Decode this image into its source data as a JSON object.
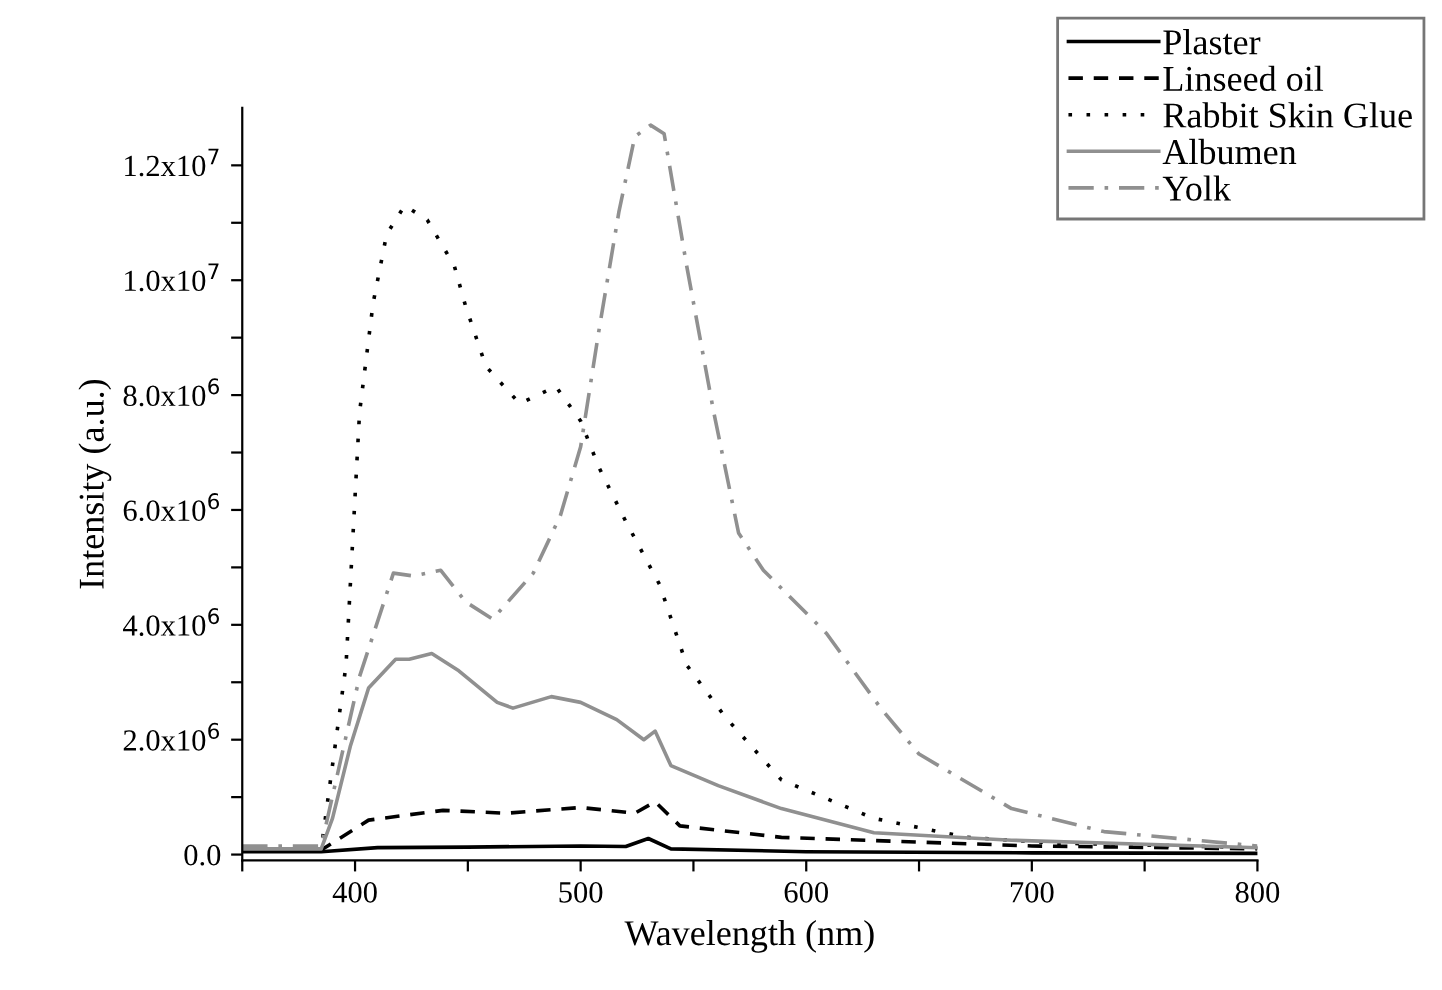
{
  "chart_data": {
    "type": "line",
    "xlabel": "Wavelength (nm)",
    "ylabel": "Intensity (a.u.)",
    "xlim": [
      350,
      800
    ],
    "xticks": [
      {
        "value": 350,
        "label": null
      },
      400,
      {
        "value": 450,
        "label": null
      },
      500,
      {
        "value": 550,
        "label": null
      },
      600,
      {
        "value": 650,
        "label": null
      },
      700,
      {
        "value": 750,
        "label": null
      },
      800
    ],
    "ylim": [
      -100000,
      13000000
    ],
    "yticks": [
      {
        "value": 0,
        "label": "0.0"
      },
      {
        "value": 1000000,
        "label": null
      },
      {
        "value": 2000000,
        "label": "2.0x10$^{6}$"
      },
      {
        "value": 3000000,
        "label": null
      },
      {
        "value": 4000000,
        "label": "4.0x10$^{6}$"
      },
      {
        "value": 5000000,
        "label": null
      },
      {
        "value": 6000000,
        "label": "6.0x10$^{6}$"
      },
      {
        "value": 7000000,
        "label": null
      },
      {
        "value": 8000000,
        "label": "8.0x10$^{6}$"
      },
      {
        "value": 9000000,
        "label": null
      },
      {
        "value": 10000000,
        "label": "1.0x10$^{7}$"
      },
      {
        "value": 11000000,
        "label": null
      },
      {
        "value": 12000000,
        "label": "1.2x10$^{7}$"
      }
    ],
    "legend": "top right",
    "grid": false,
    "marker": "none",
    "series": [
      {
        "name": "Plaster",
        "color": "#000000",
        "line_style": "solid",
        "x": [
          350,
          385,
          410,
          450,
          500,
          520,
          530,
          540,
          600,
          700,
          800
        ],
        "values": [
          50000,
          50000,
          120000,
          130000,
          150000,
          140000,
          280000,
          100000,
          50000,
          30000,
          20000
        ]
      },
      {
        "name": "Linseed oil",
        "color": "#000000",
        "line_style": "dashed",
        "x": [
          350,
          385,
          406,
          439,
          467,
          500,
          524,
          533,
          544,
          589,
          700,
          800
        ],
        "values": [
          80000,
          80000,
          600000,
          770000,
          720000,
          820000,
          720000,
          920000,
          500000,
          300000,
          150000,
          100000
        ]
      },
      {
        "name": "Rabbit Skin Glue",
        "color": "#000000",
        "line_style": "dotted",
        "x": [
          350,
          385,
          396,
          402,
          408,
          414,
          422,
          432,
          444,
          449,
          458,
          473,
          489,
          500,
          508,
          520,
          535,
          547,
          564,
          589,
          630,
          671,
          711,
          800
        ],
        "values": [
          100000,
          100000,
          3300000,
          7700000,
          9600000,
          10800000,
          11300000,
          11050000,
          10250000,
          9550000,
          8500000,
          7850000,
          8150000,
          7550000,
          6750000,
          5800000,
          4700000,
          3300000,
          2400000,
          1300000,
          630000,
          300000,
          200000,
          120000
        ]
      },
      {
        "name": "Albumen",
        "color": "#909090",
        "line_style": "solid",
        "x": [
          350,
          385,
          390,
          398,
          406,
          418,
          424,
          434,
          446,
          463,
          470,
          487,
          500,
          516,
          528,
          533,
          540,
          561,
          589,
          630,
          691,
          800
        ],
        "values": [
          100000,
          100000,
          630000,
          1900000,
          2900000,
          3400000,
          3400000,
          3500000,
          3200000,
          2650000,
          2550000,
          2750000,
          2650000,
          2350000,
          2000000,
          2150000,
          1550000,
          1200000,
          800000,
          380000,
          250000,
          120000
        ]
      },
      {
        "name": "Yolk",
        "color": "#909090",
        "line_style": "dashdot",
        "x": [
          350,
          385,
          402,
          417,
          426,
          438,
          449,
          461,
          479,
          491,
          500,
          508,
          517,
          524,
          531,
          537,
          547,
          559,
          570,
          581,
          609,
          633,
          650,
          691,
          732,
          800
        ],
        "values": [
          150000,
          150000,
          3100000,
          4900000,
          4850000,
          4950000,
          4400000,
          4100000,
          4900000,
          5900000,
          7100000,
          9100000,
          11200000,
          12500000,
          12700000,
          12550000,
          10250000,
          7700000,
          5600000,
          4950000,
          3850000,
          2550000,
          1750000,
          800000,
          400000,
          150000
        ]
      }
    ]
  }
}
